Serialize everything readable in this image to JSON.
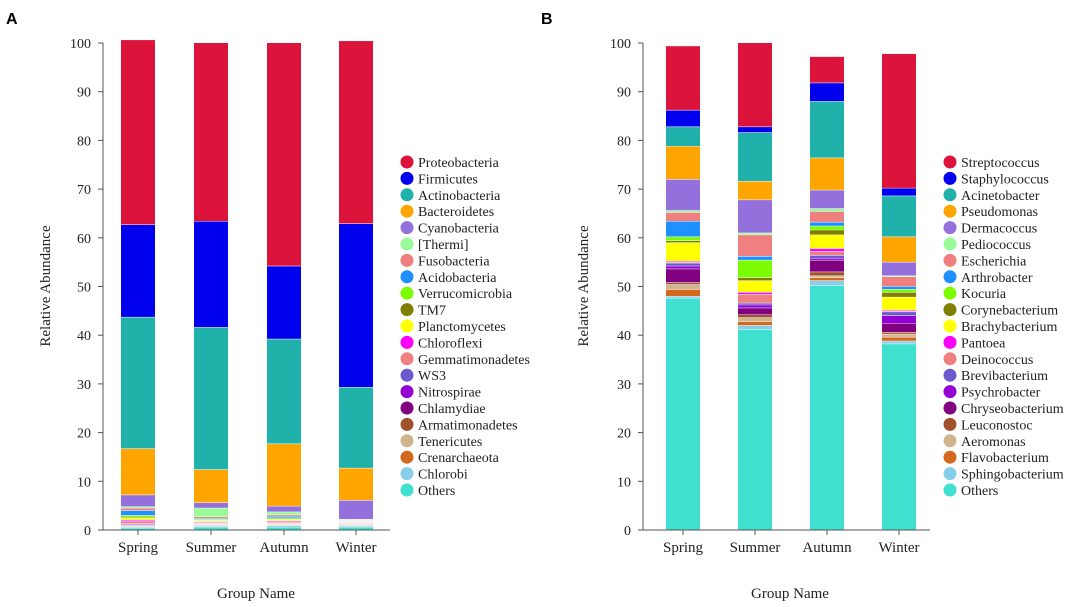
{
  "chart_data": [
    {
      "panel_label": "A",
      "type": "bar",
      "stacked": true,
      "xlabel": "Group Name",
      "ylabel": "Relative Abundance",
      "ylim": [
        0,
        100
      ],
      "yticks": [
        0,
        10,
        20,
        30,
        40,
        50,
        60,
        70,
        80,
        90,
        100
      ],
      "categories": [
        "Spring",
        "Summer",
        "Autumn",
        "Winter"
      ],
      "series": [
        {
          "name": "Others",
          "color": "#40e0d0",
          "values": [
            0.4,
            0.6,
            0.6,
            0.6
          ]
        },
        {
          "name": "Chlorobi",
          "color": "#87ceeb",
          "values": [
            0.2,
            0.2,
            0.3,
            0.2
          ]
        },
        {
          "name": "Crenarchaeota",
          "color": "#d2691e",
          "values": [
            0.1,
            0.1,
            0.1,
            0.1
          ]
        },
        {
          "name": "Tenericutes",
          "color": "#d2b48c",
          "values": [
            0.1,
            0.1,
            0.1,
            0.1
          ]
        },
        {
          "name": "Armatimonadetes",
          "color": "#a0522d",
          "values": [
            0.1,
            0.1,
            0.1,
            0.1
          ]
        },
        {
          "name": "Chlamydiae",
          "color": "#800080",
          "values": [
            0.1,
            0.1,
            0.1,
            0.1
          ]
        },
        {
          "name": "Nitrospirae",
          "color": "#9400d3",
          "values": [
            0.1,
            0.1,
            0.1,
            0.1
          ]
        },
        {
          "name": "WS3",
          "color": "#6a5acd",
          "values": [
            0.2,
            0.1,
            0.1,
            0.1
          ]
        },
        {
          "name": "Gemmatimonadetes",
          "color": "#f08080",
          "values": [
            0.4,
            0.2,
            0.2,
            0.1
          ]
        },
        {
          "name": "Chloroflexi",
          "color": "#ff00ff",
          "values": [
            0.3,
            0.1,
            0.2,
            0.1
          ]
        },
        {
          "name": "Planctomycetes",
          "color": "#ffff00",
          "values": [
            0.4,
            0.2,
            0.2,
            0.1
          ]
        },
        {
          "name": "TM7",
          "color": "#808000",
          "values": [
            0.2,
            0.1,
            0.1,
            0.1
          ]
        },
        {
          "name": "Verrucomicrobia",
          "color": "#7cfc00",
          "values": [
            0.4,
            0.2,
            0.3,
            0.1
          ]
        },
        {
          "name": "Acidobacteria",
          "color": "#1e90ff",
          "values": [
            1.0,
            0.2,
            0.3,
            0.1
          ]
        },
        {
          "name": "Fusobacteria",
          "color": "#f08080",
          "values": [
            0.5,
            0.3,
            0.3,
            0.1
          ]
        },
        {
          "name": "[Thermi]",
          "color": "#98fb98",
          "values": [
            0.3,
            1.8,
            0.6,
            0.1
          ]
        },
        {
          "name": "Cyanobacteria",
          "color": "#9370db",
          "values": [
            2.4,
            1.1,
            1.2,
            3.9
          ]
        },
        {
          "name": "Bacteroidetes",
          "color": "#ffa500",
          "values": [
            9.5,
            6.8,
            12.8,
            6.6
          ]
        },
        {
          "name": "Actinobacteria",
          "color": "#20b2aa",
          "values": [
            27.0,
            29.2,
            21.5,
            16.6
          ]
        },
        {
          "name": "Firmicutes",
          "color": "#0000ee",
          "values": [
            19.0,
            21.8,
            15.0,
            33.6
          ]
        },
        {
          "name": "Proteobacteria",
          "color": "#dc143c",
          "values": [
            37.9,
            36.6,
            45.8,
            37.5
          ]
        }
      ],
      "legend": [
        "Proteobacteria",
        "Firmicutes",
        "Actinobacteria",
        "Bacteroidetes",
        "Cyanobacteria",
        "[Thermi]",
        "Fusobacteria",
        "Acidobacteria",
        "Verrucomicrobia",
        "TM7",
        "Planctomycetes",
        "Chloroflexi",
        "Gemmatimonadetes",
        "WS3",
        "Nitrospirae",
        "Chlamydiae",
        "Armatimonadetes",
        "Tenericutes",
        "Crenarchaeota",
        "Chlorobi",
        "Others"
      ],
      "legend_position": "right"
    },
    {
      "panel_label": "B",
      "type": "bar",
      "stacked": true,
      "xlabel": "Group Name",
      "ylabel": "Relative Abundance",
      "ylim": [
        0,
        100
      ],
      "yticks": [
        0,
        10,
        20,
        30,
        40,
        50,
        60,
        70,
        80,
        90,
        100
      ],
      "categories": [
        "Spring",
        "Summer",
        "Autumn",
        "Winter"
      ],
      "series": [
        {
          "name": "Others",
          "color": "#40e0d0",
          "values": [
            47.6,
            41.2,
            50.2,
            38.2
          ]
        },
        {
          "name": "Sphingobacterium",
          "color": "#87ceeb",
          "values": [
            0.4,
            0.8,
            1.0,
            0.6
          ]
        },
        {
          "name": "Flavobacterium",
          "color": "#d2691e",
          "values": [
            1.4,
            0.8,
            0.6,
            0.8
          ]
        },
        {
          "name": "Aeromonas",
          "color": "#d2b48c",
          "values": [
            1.0,
            0.8,
            0.4,
            0.6
          ]
        },
        {
          "name": "Leuconostoc",
          "color": "#a0522d",
          "values": [
            0.4,
            0.6,
            0.8,
            0.4
          ]
        },
        {
          "name": "Chryseobacterium",
          "color": "#800080",
          "values": [
            2.8,
            1.4,
            2.4,
            1.8
          ]
        },
        {
          "name": "Psychrobacter",
          "color": "#9400d3",
          "values": [
            0.6,
            0.6,
            0.4,
            1.6
          ]
        },
        {
          "name": "Brevibacterium",
          "color": "#6a5acd",
          "values": [
            0.6,
            0.4,
            0.6,
            0.8
          ]
        },
        {
          "name": "Deinococcus",
          "color": "#f08080",
          "values": [
            0.2,
            1.8,
            0.8,
            0.2
          ]
        },
        {
          "name": "Pantoea",
          "color": "#ff00ff",
          "values": [
            0.2,
            0.4,
            0.6,
            0.2
          ]
        },
        {
          "name": "Brachybacterium",
          "color": "#ffff00",
          "values": [
            3.8,
            2.4,
            2.8,
            2.6
          ]
        },
        {
          "name": "Corynebacterium",
          "color": "#808000",
          "values": [
            0.4,
            0.6,
            1.0,
            1.0
          ]
        },
        {
          "name": "Kocuria",
          "color": "#7cfc00",
          "values": [
            0.8,
            3.6,
            0.8,
            0.6
          ]
        },
        {
          "name": "Arthrobacter",
          "color": "#1e90ff",
          "values": [
            3.2,
            0.8,
            0.8,
            0.6
          ]
        },
        {
          "name": "Escherichia",
          "color": "#f08080",
          "values": [
            1.8,
            4.4,
            2.2,
            2.0
          ]
        },
        {
          "name": "Pediococcus",
          "color": "#98fb98",
          "values": [
            0.4,
            0.4,
            0.6,
            0.2
          ]
        },
        {
          "name": "Dermacoccus",
          "color": "#9370db",
          "values": [
            6.4,
            6.8,
            3.8,
            2.8
          ]
        },
        {
          "name": "Pseudomonas",
          "color": "#ffa500",
          "values": [
            6.8,
            3.8,
            6.6,
            5.2
          ]
        },
        {
          "name": "Acinetobacter",
          "color": "#20b2aa",
          "values": [
            4.0,
            10.0,
            11.6,
            8.4
          ]
        },
        {
          "name": "Staphylococcus",
          "color": "#0000ee",
          "values": [
            3.4,
            1.2,
            3.8,
            1.6
          ]
        },
        {
          "name": "Streptococcus",
          "color": "#dc143c",
          "values": [
            13.2,
            17.2,
            5.4,
            27.6
          ]
        }
      ],
      "legend": [
        "Streptococcus",
        "Staphylococcus",
        "Acinetobacter",
        "Pseudomonas",
        "Dermacoccus",
        "Pediococcus",
        "Escherichia",
        "Arthrobacter",
        "Kocuria",
        "Corynebacterium",
        "Brachybacterium",
        "Pantoea",
        "Deinococcus",
        "Brevibacterium",
        "Psychrobacter",
        "Chryseobacterium",
        "Leuconostoc",
        "Aeromonas",
        "Flavobacterium",
        "Sphingobacterium",
        "Others"
      ],
      "legend_position": "right"
    }
  ]
}
